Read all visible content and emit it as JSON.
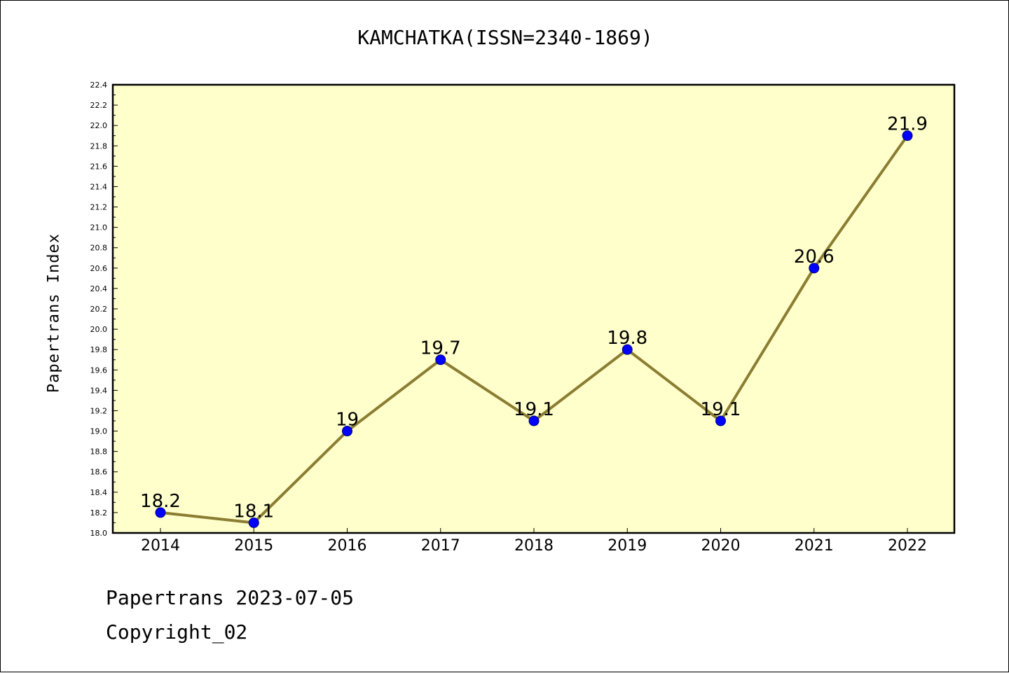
{
  "chart_data": {
    "type": "line",
    "title": "KAMCHATKA(ISSN=2340-1869)",
    "xlabel": "",
    "ylabel": "Papertrans Index",
    "categories": [
      "2014",
      "2015",
      "2016",
      "2017",
      "2018",
      "2019",
      "2020",
      "2021",
      "2022"
    ],
    "series": [
      {
        "values": [
          18.2,
          18.1,
          19,
          19.7,
          19.1,
          19.8,
          19.1,
          20.6,
          21.9
        ],
        "labels": [
          "18.2",
          "18.1",
          "19",
          "19.7",
          "19.1",
          "19.8",
          "19.1",
          "20.6",
          "21.9"
        ]
      }
    ],
    "ylim": [
      18.0,
      22.4
    ],
    "yticks": [
      "18.0",
      "18.2",
      "18.4",
      "18.6",
      "18.8",
      "19.0",
      "19.2",
      "19.4",
      "19.6",
      "19.8",
      "20.0",
      "20.2",
      "20.4",
      "20.6",
      "20.8",
      "21.0",
      "21.2",
      "21.4",
      "21.6",
      "21.8",
      "22.0",
      "22.2",
      "22.4"
    ],
    "grid": false,
    "legend": "none",
    "colors": {
      "plot_background": "#ffffcc",
      "line": "#8b7d32",
      "marker": "#0000ff",
      "marker_edge": "#000080"
    }
  },
  "footer": {
    "date_line": "Papertrans 2023-07-05",
    "copyright": "Copyright_02"
  }
}
